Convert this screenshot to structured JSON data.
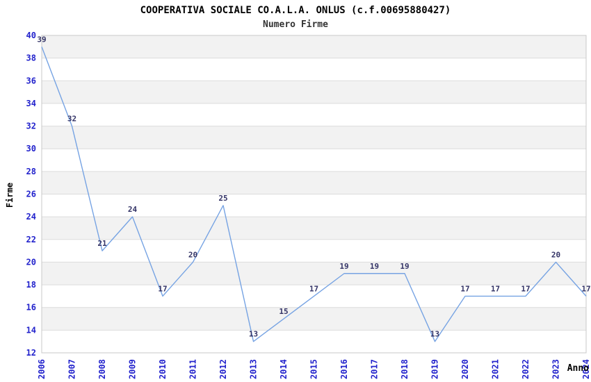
{
  "header": {
    "title": "COOPERATIVA SOCIALE CO.A.L.A. ONLUS (c.f.00695880427)",
    "subtitle": "Numero Firme"
  },
  "chart_data": {
    "type": "line",
    "title": "COOPERATIVA SOCIALE CO.A.L.A. ONLUS (c.f.00695880427)",
    "subtitle": "Numero Firme",
    "xlabel": "Anno",
    "ylabel": "Firme",
    "categories": [
      "2006",
      "2007",
      "2008",
      "2009",
      "2010",
      "2011",
      "2012",
      "2013",
      "2014",
      "2015",
      "2016",
      "2017",
      "2018",
      "2019",
      "2020",
      "2021",
      "2022",
      "2023",
      "2024"
    ],
    "series": [
      {
        "name": "Numero Firme",
        "values": [
          39,
          32,
          21,
          24,
          17,
          20,
          25,
          13,
          15,
          17,
          19,
          19,
          19,
          13,
          17,
          17,
          17,
          20,
          17
        ]
      }
    ],
    "ylim": [
      12,
      40
    ],
    "ytick_step": 2,
    "grid": "horizontal-bands",
    "legend_position": "none",
    "data_labels": "above-points",
    "colors": {
      "line": "#76a3e3",
      "tick_label": "#2222cc",
      "point_label": "#333366",
      "band_alt": "#f2f2f2",
      "gridline": "#dcdcdc",
      "plot_border": "#c8c8c8",
      "title": "#000000",
      "subtitle": "#333333",
      "axis_title": "#000000",
      "background": "#ffffff"
    }
  }
}
